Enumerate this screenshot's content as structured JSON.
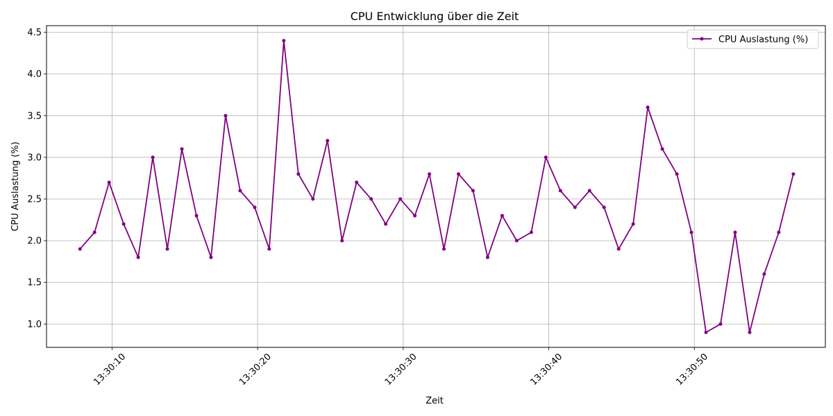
{
  "chart_data": {
    "type": "line",
    "title": "CPU Entwicklung über die Zeit",
    "xlabel": "Zeit",
    "ylabel": "CPU Auslastung (%)",
    "ylim": [
      0.72,
      4.58
    ],
    "xlim": [
      "13:30:05.5",
      "13:30:59.0"
    ],
    "grid": true,
    "legend": "top-right",
    "x": [
      "13:30:07.8",
      "13:30:08.8",
      "13:30:09.8",
      "13:30:10.8",
      "13:30:11.8",
      "13:30:12.8",
      "13:30:13.8",
      "13:30:14.8",
      "13:30:15.8",
      "13:30:16.8",
      "13:30:17.8",
      "13:30:18.8",
      "13:30:19.8",
      "13:30:20.8",
      "13:30:21.8",
      "13:30:22.8",
      "13:30:23.8",
      "13:30:24.8",
      "13:30:25.8",
      "13:30:26.8",
      "13:30:27.8",
      "13:30:28.8",
      "13:30:29.8",
      "13:30:30.8",
      "13:30:31.8",
      "13:30:32.8",
      "13:30:33.8",
      "13:30:34.8",
      "13:30:35.8",
      "13:30:36.8",
      "13:30:37.8",
      "13:30:38.8",
      "13:30:39.8",
      "13:30:40.8",
      "13:30:41.8",
      "13:30:42.8",
      "13:30:43.8",
      "13:30:44.8",
      "13:30:45.8",
      "13:30:46.8",
      "13:30:47.8",
      "13:30:48.8",
      "13:30:49.8",
      "13:30:50.8",
      "13:30:51.8",
      "13:30:52.8",
      "13:30:53.8",
      "13:30:54.8",
      "13:30:55.8",
      "13:30:56.8"
    ],
    "series": [
      {
        "name": "CPU Auslastung (%)",
        "color": "#800080",
        "values": [
          1.9,
          2.1,
          2.7,
          2.2,
          1.8,
          3.0,
          1.9,
          3.1,
          2.3,
          1.8,
          3.5,
          2.6,
          2.4,
          1.9,
          4.4,
          2.8,
          2.5,
          3.2,
          2.0,
          2.7,
          2.5,
          2.2,
          2.5,
          2.3,
          2.8,
          1.9,
          2.8,
          2.6,
          1.8,
          2.3,
          2.0,
          2.1,
          3.0,
          2.6,
          2.4,
          2.6,
          2.4,
          1.9,
          2.2,
          3.6,
          3.1,
          2.8,
          2.1,
          0.9,
          1.0,
          2.1,
          0.9,
          1.6,
          2.1,
          2.8
        ]
      }
    ],
    "yticks": [
      "1.0",
      "1.5",
      "2.0",
      "2.5",
      "3.0",
      "3.5",
      "4.0",
      "4.5"
    ],
    "xticks": [
      "13:30:10",
      "13:30:20",
      "13:30:30",
      "13:30:40",
      "13:30:50"
    ]
  }
}
